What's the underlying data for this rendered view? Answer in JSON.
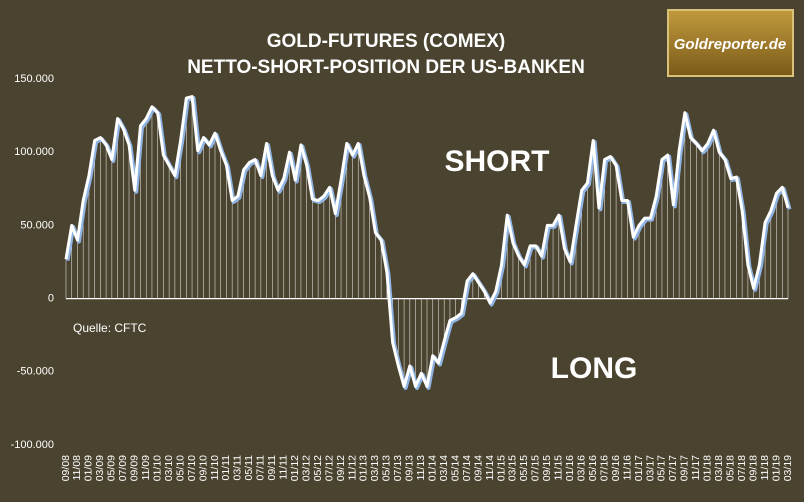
{
  "chart_data": {
    "type": "line",
    "title": "GOLD-FUTURES (COMEX)",
    "subtitle": "NETTO-SHORT-POSITION DER US-BANKEN",
    "logo": "Goldreporter.de",
    "annotations": [
      "SHORT",
      "LONG"
    ],
    "source": "Quelle: CFTC",
    "color": "#ffffff",
    "shadow_color": "#8fb4e3",
    "categories": [
      "09/08",
      null,
      "11/08",
      null,
      "01/09",
      null,
      "03/09",
      null,
      "05/09",
      null,
      "07/09",
      null,
      "09/09",
      null,
      "11/09",
      null,
      "01/10",
      null,
      "03/10",
      null,
      "05/10",
      null,
      "07/10",
      null,
      "09/10",
      null,
      "11/10",
      null,
      "01/11",
      null,
      "03/11",
      null,
      "05/11",
      null,
      "07/11",
      null,
      "09/11",
      null,
      "11/11",
      null,
      "01/12",
      null,
      "03/12",
      null,
      "05/12",
      null,
      "07/12",
      null,
      "09/12",
      null,
      "11/12",
      null,
      "01/13",
      null,
      "03/13",
      null,
      "05/13",
      null,
      "07/13",
      null,
      "09/13",
      null,
      "11/13",
      null,
      "01/14",
      null,
      "03/14",
      null,
      "05/14",
      null,
      "07/14",
      null,
      "09/14",
      null,
      "11/14",
      null,
      "01/15",
      null,
      "03/15",
      null,
      "05/15",
      null,
      "07/15",
      null,
      "09/15",
      null,
      "11/15",
      null,
      "01/16",
      null,
      "03/16",
      null,
      "05/16",
      null,
      "07/16",
      null,
      "09/16",
      null,
      "11/16",
      null,
      "01/17",
      null,
      "03/17",
      null,
      "05/17",
      null,
      "07/17",
      null,
      "09/17",
      null,
      "11/17",
      null,
      "01/18",
      null,
      "03/18",
      null,
      "05/18",
      null,
      "07/18",
      null,
      "09/18",
      null,
      "11/18",
      null,
      "01/19",
      null,
      "03/19"
    ],
    "values": [
      27000,
      50000,
      40000,
      67000,
      84000,
      108000,
      110000,
      105000,
      95000,
      123000,
      116000,
      105000,
      74000,
      118000,
      123000,
      131000,
      127000,
      98000,
      91000,
      84000,
      108000,
      137000,
      138000,
      101000,
      110000,
      105000,
      113000,
      101000,
      91000,
      67000,
      70000,
      88000,
      93000,
      95000,
      84000,
      106000,
      84000,
      74000,
      82000,
      100000,
      81000,
      105000,
      91000,
      68000,
      67000,
      70000,
      76000,
      58000,
      81000,
      106000,
      98000,
      106000,
      84000,
      69000,
      45000,
      40000,
      18000,
      -30000,
      -46000,
      -60000,
      -46000,
      -60000,
      -51000,
      -60000,
      -39000,
      -44000,
      -29000,
      -15000,
      -13000,
      -10000,
      12000,
      17000,
      11000,
      5000,
      -3000,
      5000,
      23000,
      57000,
      38000,
      29000,
      23000,
      36000,
      36000,
      29000,
      50000,
      50000,
      57000,
      34000,
      25000,
      50000,
      74000,
      79000,
      108000,
      62000,
      95000,
      97000,
      91000,
      67000,
      67000,
      42000,
      50000,
      55000,
      55000,
      70000,
      95000,
      98000,
      64000,
      101000,
      127000,
      110000,
      106000,
      101000,
      106000,
      115000,
      100000,
      95000,
      82000,
      83000,
      60000,
      23000,
      7000,
      23000,
      52000,
      60000,
      72000,
      76000,
      62000
    ],
    "ylim": [
      -100000,
      150000
    ],
    "yticks": [
      {
        "value": -100000,
        "label": "-100.000"
      },
      {
        "value": -50000,
        "label": "-50.000"
      },
      0,
      {
        "value": 50000,
        "label": "50.000"
      },
      {
        "value": 100000,
        "label": "100.000"
      },
      {
        "value": 150000,
        "label": "150.000"
      }
    ],
    "grid": false
  }
}
